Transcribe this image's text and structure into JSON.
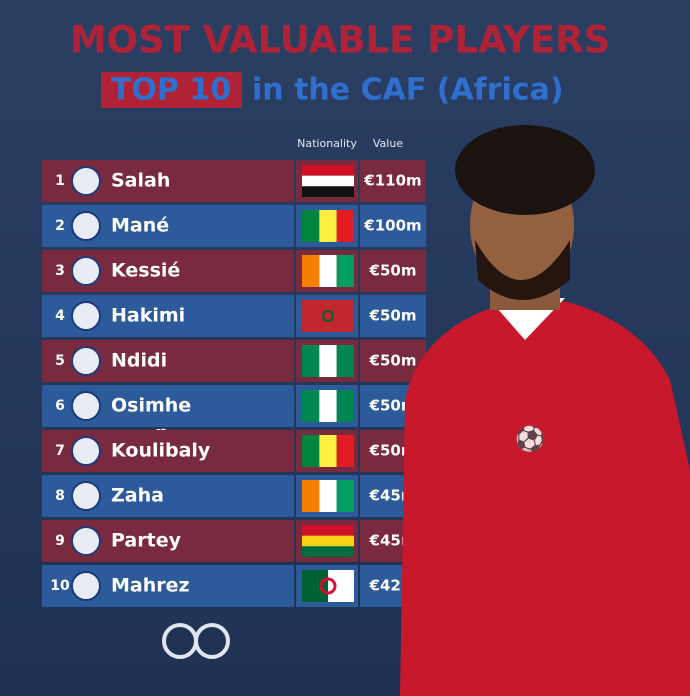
{
  "header": {
    "title": "MOST VALUABLE PLAYERS",
    "highlight": "TOP 10",
    "subtitle": "in the CAF (Africa)"
  },
  "table": {
    "columns": [
      "Nationality",
      "Value"
    ],
    "rows": [
      {
        "rank": 1,
        "name": "Salah",
        "value": "€110m"
      },
      {
        "rank": 2,
        "name": "Mané",
        "value": "€100m"
      },
      {
        "rank": 3,
        "name": "Kessié",
        "value": "€50m"
      },
      {
        "rank": 4,
        "name": "Hakimi",
        "value": "€50m"
      },
      {
        "rank": 5,
        "name": "Ndidi",
        "value": "€50m"
      },
      {
        "rank": 6,
        "name": "Osimhe",
        "name_wrap": "n",
        "value": "€50m"
      },
      {
        "rank": 7,
        "name": "Koulibaly",
        "value": "€50m"
      },
      {
        "rank": 8,
        "name": "Zaha",
        "value": "€45m"
      },
      {
        "rank": 9,
        "name": "Partey",
        "value": "€45m"
      },
      {
        "rank": 10,
        "name": "Mahrez",
        "value": "€42m"
      }
    ]
  }
}
